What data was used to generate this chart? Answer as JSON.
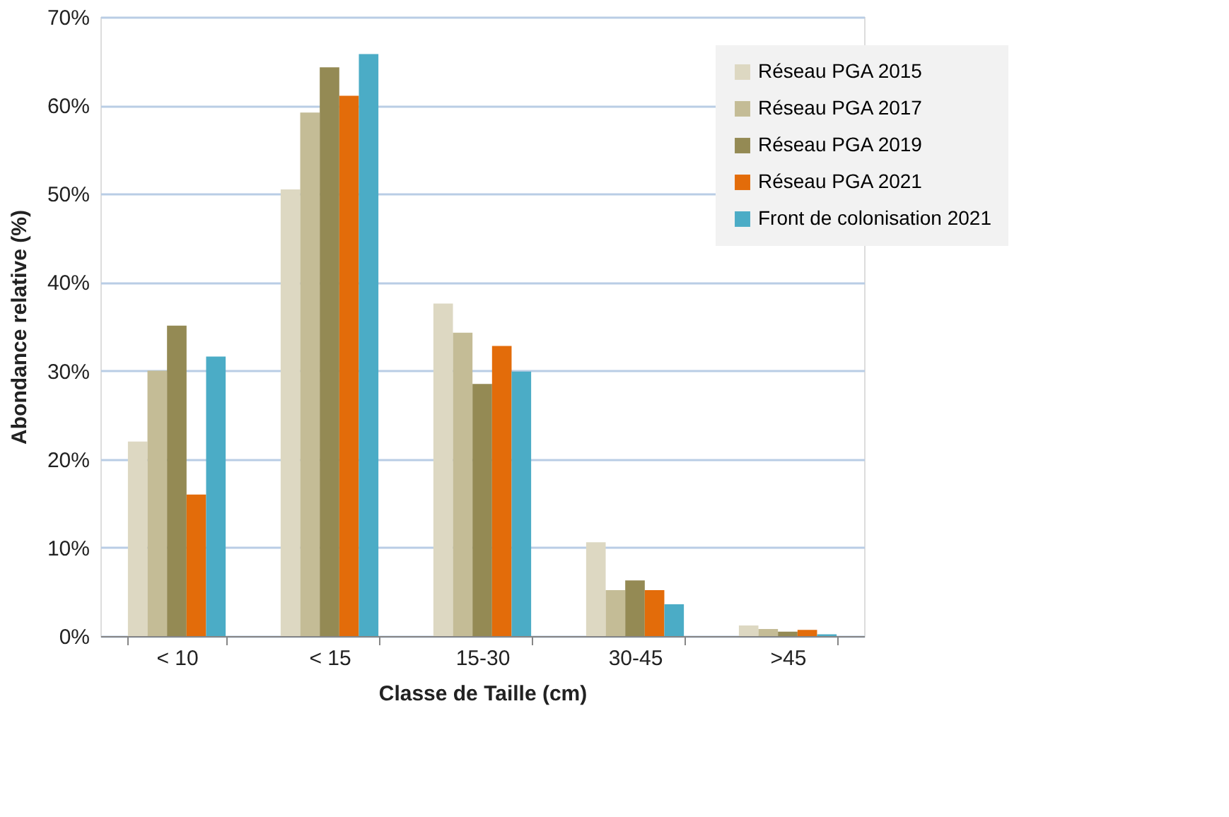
{
  "chart_data": {
    "type": "bar",
    "xlabel": "Classe de Taille (cm)",
    "ylabel": "Abondance relative (%)",
    "categories": [
      "< 10",
      "< 15",
      "15-30",
      "30-45",
      ">45"
    ],
    "series": [
      {
        "name": "Réseau PGA 2015",
        "color": "#ddd8c2",
        "values": [
          22.0,
          50.5,
          37.6,
          10.6,
          1.2
        ]
      },
      {
        "name": "Réseau PGA 2017",
        "color": "#c4bc96",
        "values": [
          30.0,
          59.2,
          34.3,
          5.2,
          0.8
        ]
      },
      {
        "name": "Réseau PGA 2019",
        "color": "#948a54",
        "values": [
          35.1,
          64.3,
          28.5,
          6.3,
          0.5
        ]
      },
      {
        "name": "Réseau PGA 2021",
        "color": "#e36c0a",
        "values": [
          16.0,
          61.1,
          32.8,
          5.2,
          0.7
        ]
      },
      {
        "name": "Front de colonisation 2021",
        "color": "#4bacc6",
        "values": [
          31.6,
          65.8,
          29.9,
          3.6,
          0.2
        ]
      }
    ],
    "ylim": [
      0,
      70
    ],
    "yticks": [
      {
        "value": 0,
        "label": "0%"
      },
      {
        "value": 10,
        "label": "10%"
      },
      {
        "value": 20,
        "label": "20%"
      },
      {
        "value": 30,
        "label": "30%"
      },
      {
        "value": 40,
        "label": "40%"
      },
      {
        "value": 50,
        "label": "50%"
      },
      {
        "value": 60,
        "label": "60%"
      },
      {
        "value": 70,
        "label": "70%"
      }
    ],
    "grid": "y",
    "legend": "top right"
  }
}
